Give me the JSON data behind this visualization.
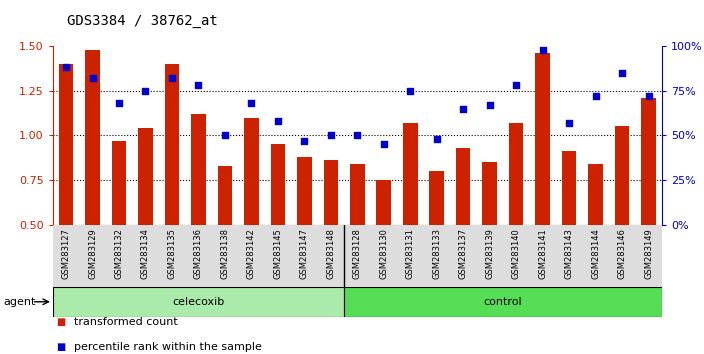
{
  "title": "GDS3384 / 38762_at",
  "samples": [
    "GSM283127",
    "GSM283129",
    "GSM283132",
    "GSM283134",
    "GSM283135",
    "GSM283136",
    "GSM283138",
    "GSM283142",
    "GSM283145",
    "GSM283147",
    "GSM283148",
    "GSM283128",
    "GSM283130",
    "GSM283131",
    "GSM283133",
    "GSM283137",
    "GSM283139",
    "GSM283140",
    "GSM283141",
    "GSM283143",
    "GSM283144",
    "GSM283146",
    "GSM283149"
  ],
  "transformed_count": [
    1.4,
    1.48,
    0.97,
    1.04,
    1.4,
    1.12,
    0.83,
    1.1,
    0.95,
    0.88,
    0.86,
    0.84,
    0.75,
    1.07,
    0.8,
    0.93,
    0.85,
    1.07,
    1.46,
    0.91,
    0.84,
    1.05,
    1.21
  ],
  "percentile_rank": [
    88,
    82,
    68,
    75,
    82,
    78,
    50,
    68,
    58,
    47,
    50,
    50,
    45,
    75,
    48,
    65,
    67,
    78,
    98,
    57,
    72,
    85,
    72
  ],
  "group": [
    "celecoxib",
    "celecoxib",
    "celecoxib",
    "celecoxib",
    "celecoxib",
    "celecoxib",
    "celecoxib",
    "celecoxib",
    "celecoxib",
    "celecoxib",
    "celecoxib",
    "control",
    "control",
    "control",
    "control",
    "control",
    "control",
    "control",
    "control",
    "control",
    "control",
    "control",
    "control"
  ],
  "celecoxib_count": 11,
  "control_count": 12,
  "ylim_left": [
    0.5,
    1.5
  ],
  "ylim_right": [
    0,
    100
  ],
  "yticks_left": [
    0.5,
    0.75,
    1.0,
    1.25,
    1.5
  ],
  "yticks_right": [
    0,
    25,
    50,
    75,
    100
  ],
  "ytick_labels_right": [
    "0%",
    "25%",
    "50%",
    "75%",
    "100%"
  ],
  "bar_color": "#cc2200",
  "dot_color": "#0000cc",
  "celecoxib_color": "#aaeaaa",
  "control_color": "#55dd55",
  "legend_bar": "transformed count",
  "legend_dot": "percentile rank within the sample"
}
